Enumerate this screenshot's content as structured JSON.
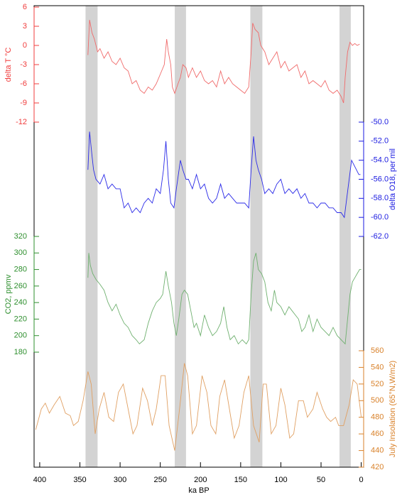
{
  "chart_data": {
    "type": "line",
    "xlabel": "ka BP",
    "xlim": [
      407,
      -3
    ],
    "xticks": [
      400,
      350,
      300,
      250,
      200,
      150,
      100,
      50,
      0
    ],
    "shaded": [
      [
        343,
        328
      ],
      [
        232,
        218
      ],
      [
        138,
        123
      ],
      [
        27,
        13
      ]
    ],
    "shade_color": "#d3d3d3",
    "panels": [
      {
        "ylabel": "delta T °C",
        "side": "left",
        "color": "#f03c3c",
        "line_color": "#f06a6a",
        "ylim": [
          -12,
          6
        ],
        "yticks": [
          6,
          3,
          0,
          -3,
          -6,
          -9,
          -12
        ],
        "x": [
          340,
          338,
          335,
          332,
          328,
          325,
          320,
          315,
          310,
          305,
          300,
          295,
          290,
          285,
          280,
          275,
          270,
          265,
          260,
          255,
          250,
          245,
          242,
          240,
          237,
          235,
          232,
          228,
          225,
          222,
          218,
          215,
          210,
          205,
          200,
          195,
          190,
          185,
          180,
          175,
          170,
          165,
          160,
          155,
          150,
          145,
          140,
          137,
          135,
          132,
          128,
          125,
          120,
          115,
          110,
          105,
          100,
          95,
          90,
          85,
          80,
          75,
          70,
          65,
          60,
          55,
          50,
          45,
          40,
          35,
          30,
          25,
          22,
          20,
          17,
          14,
          11,
          8,
          5,
          2
        ],
        "values": [
          -1.5,
          4,
          2,
          1,
          -1,
          -0.5,
          -2,
          -1,
          -2.5,
          -3,
          -2,
          -3.5,
          -4,
          -6,
          -5.5,
          -7,
          -7.5,
          -6.5,
          -7,
          -6,
          -4.5,
          -3,
          1,
          -1,
          -3,
          -6.5,
          -7.5,
          -6,
          -5,
          -3,
          -3.5,
          -5,
          -3.5,
          -5,
          -4,
          -5.5,
          -6,
          -5.5,
          -6.5,
          -4,
          -6,
          -5,
          -6,
          -6.5,
          -7,
          -7.5,
          -6.5,
          -1,
          3.5,
          2.5,
          2,
          0,
          -1,
          -3,
          -2,
          -1,
          -3.5,
          -2.5,
          -4,
          -3.5,
          -3,
          -5,
          -4,
          -6,
          -5.5,
          -6,
          -6.5,
          -5.5,
          -7,
          -7.5,
          -7,
          -8,
          -9,
          -5,
          -1,
          0.5,
          0,
          0.3,
          0,
          0.2
        ]
      },
      {
        "ylabel": "delta O18, per mil",
        "side": "right",
        "color": "#1a1ae0",
        "line_color": "#2a2ae8",
        "ylim": [
          -62,
          -50
        ],
        "yticks": [
          {
            "value": -50,
            "label": "-50.0"
          },
          {
            "value": -52,
            "label": "-52.0"
          },
          {
            "value": -54,
            "label": "-54.0"
          },
          {
            "value": -56,
            "label": "-56.0"
          },
          {
            "value": -58,
            "label": "-58.0"
          },
          {
            "value": -60,
            "label": "-60.0"
          },
          {
            "value": -62,
            "label": "-62.0"
          }
        ],
        "x": [
          340,
          338,
          335,
          333,
          330,
          325,
          320,
          315,
          310,
          305,
          300,
          295,
          290,
          285,
          280,
          275,
          270,
          265,
          260,
          255,
          250,
          246,
          243,
          240,
          237,
          233,
          230,
          225,
          222,
          218,
          215,
          210,
          205,
          200,
          195,
          190,
          185,
          180,
          175,
          170,
          165,
          160,
          155,
          150,
          145,
          140,
          137,
          134,
          131,
          128,
          124,
          120,
          115,
          110,
          105,
          100,
          95,
          90,
          85,
          80,
          75,
          70,
          65,
          60,
          55,
          50,
          45,
          40,
          35,
          30,
          25,
          21,
          18,
          15,
          12,
          9,
          6,
          3,
          1
        ],
        "values": [
          -55,
          -51,
          -53.5,
          -55,
          -56,
          -56.5,
          -55.5,
          -57,
          -56.5,
          -57,
          -57,
          -59,
          -58.5,
          -59.5,
          -59,
          -59.5,
          -58.5,
          -58,
          -58.5,
          -57,
          -57.5,
          -55,
          -52,
          -56,
          -58.5,
          -59,
          -57,
          -54,
          -55,
          -56,
          -56,
          -57,
          -55.5,
          -57,
          -56.5,
          -58,
          -58.5,
          -58,
          -56.5,
          -58,
          -57.5,
          -58,
          -58.5,
          -58.5,
          -58.5,
          -59,
          -55,
          -51.5,
          -54,
          -55,
          -56,
          -57.5,
          -57,
          -57.5,
          -56.5,
          -56,
          -57.5,
          -57,
          -57.5,
          -57,
          -58,
          -57.5,
          -58.5,
          -58.5,
          -59,
          -58.5,
          -58.5,
          -59,
          -59,
          -59.5,
          -59.5,
          -60,
          -58,
          -56,
          -54,
          -54.5,
          -55,
          -55.5,
          -55.5
        ]
      },
      {
        "ylabel": "CO2, ppmv",
        "side": "left",
        "color": "#2e8f2e",
        "line_color": "#6fb06f",
        "ylim": [
          180,
          320
        ],
        "yticks": [
          320,
          300,
          280,
          260,
          240,
          220,
          200,
          180
        ],
        "x": [
          340,
          339,
          337,
          334,
          330,
          325,
          320,
          315,
          310,
          305,
          300,
          295,
          290,
          285,
          280,
          276,
          270,
          265,
          260,
          255,
          250,
          247,
          243,
          240,
          236,
          233,
          230,
          227,
          223,
          220,
          216,
          212,
          208,
          205,
          200,
          195,
          190,
          185,
          180,
          175,
          171,
          167,
          163,
          158,
          153,
          148,
          143,
          140,
          137,
          134,
          131,
          128,
          124,
          120,
          116,
          112,
          108,
          105,
          100,
          95,
          90,
          86,
          82,
          78,
          74,
          70,
          65,
          60,
          55,
          50,
          45,
          40,
          35,
          30,
          25,
          20,
          17,
          14,
          11,
          8,
          5,
          2,
          0
        ],
        "values": [
          270,
          300,
          285,
          275,
          268,
          262,
          255,
          240,
          230,
          238,
          225,
          215,
          210,
          200,
          195,
          190,
          195,
          215,
          230,
          240,
          245,
          250,
          278,
          260,
          240,
          215,
          200,
          220,
          250,
          255,
          250,
          230,
          210,
          215,
          200,
          225,
          210,
          200,
          205,
          215,
          235,
          210,
          195,
          200,
          190,
          195,
          190,
          195,
          250,
          290,
          300,
          280,
          275,
          265,
          240,
          230,
          255,
          240,
          235,
          225,
          235,
          230,
          225,
          220,
          205,
          210,
          225,
          205,
          220,
          210,
          205,
          200,
          210,
          200,
          195,
          190,
          220,
          250,
          265,
          270,
          275,
          280,
          280
        ]
      },
      {
        "ylabel": "July Insolation (65°N,W/m2)",
        "side": "right",
        "color": "#d9822b",
        "line_color": "#e0a063",
        "ylim": [
          420,
          560
        ],
        "yticks": [
          560,
          540,
          520,
          500,
          480,
          460,
          440,
          420
        ],
        "x": [
          405,
          398,
          393,
          388,
          382,
          375,
          368,
          362,
          358,
          352,
          346,
          340,
          336,
          331,
          326,
          320,
          314,
          308,
          302,
          296,
          290,
          284,
          279,
          272,
          266,
          260,
          255,
          249,
          244,
          239,
          232,
          226,
          220,
          216,
          210,
          205,
          198,
          192,
          187,
          181,
          176,
          170,
          164,
          158,
          152,
          146,
          140,
          134,
          127,
          122,
          118,
          112,
          106,
          100,
          95,
          89,
          84,
          78,
          72,
          67,
          60,
          55,
          48,
          43,
          38,
          32,
          28,
          22,
          15,
          10,
          5,
          0
        ],
        "values": [
          465,
          490,
          497,
          485,
          495,
          505,
          485,
          482,
          470,
          475,
          500,
          535,
          520,
          460,
          490,
          510,
          480,
          475,
          510,
          520,
          490,
          460,
          470,
          515,
          500,
          470,
          490,
          530,
          530,
          470,
          440,
          490,
          545,
          530,
          460,
          470,
          530,
          510,
          470,
          460,
          505,
          525,
          490,
          455,
          470,
          510,
          530,
          470,
          450,
          520,
          520,
          460,
          470,
          515,
          495,
          455,
          460,
          500,
          500,
          480,
          490,
          510,
          490,
          480,
          475,
          480,
          470,
          470,
          495,
          525,
          520,
          480
        ]
      }
    ]
  }
}
